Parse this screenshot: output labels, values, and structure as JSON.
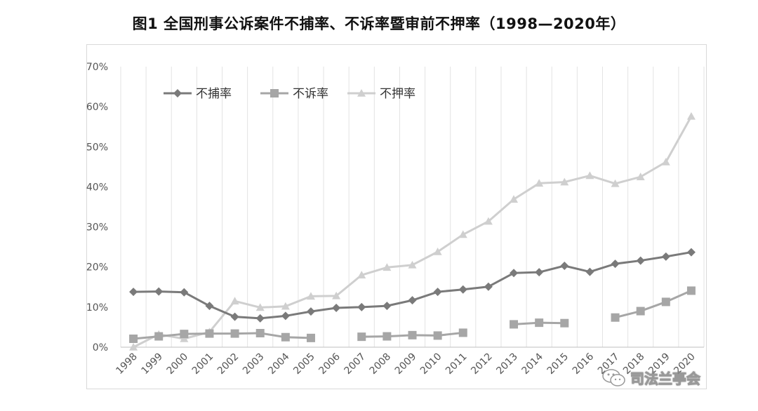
{
  "chart_data": {
    "type": "line",
    "title": "图1 全国刑事公诉案件不捕率、不诉率暨审前不押率（1998—2020年）",
    "x": [
      "1998",
      "1999",
      "2000",
      "2001",
      "2002",
      "2003",
      "2004",
      "2005",
      "2006",
      "2007",
      "2008",
      "2009",
      "2010",
      "2011",
      "2012",
      "2013",
      "2014",
      "2015",
      "2016",
      "2017",
      "2018",
      "2019",
      "2020"
    ],
    "ylim": [
      0,
      70
    ],
    "yticks": [
      "0%",
      "10%",
      "20%",
      "30%",
      "40%",
      "50%",
      "60%",
      "70%"
    ],
    "grid": "vertical",
    "legend_position": "top-left",
    "series": [
      {
        "name": "不捕率",
        "marker": "diamond",
        "color": "#7a7a7a",
        "values": [
          13.8,
          13.9,
          13.7,
          10.3,
          7.6,
          7.2,
          7.8,
          8.9,
          9.8,
          10.0,
          10.3,
          11.7,
          13.8,
          14.4,
          15.1,
          18.5,
          18.7,
          20.3,
          18.8,
          20.8,
          21.6,
          22.6,
          23.7
        ]
      },
      {
        "name": "不诉率",
        "marker": "square",
        "color": "#a6a6a6",
        "values": [
          2.1,
          2.7,
          3.3,
          3.4,
          3.4,
          3.5,
          2.5,
          2.3,
          null,
          2.6,
          2.7,
          3.0,
          2.9,
          3.6,
          null,
          5.7,
          6.1,
          6.0,
          null,
          7.4,
          9.0,
          11.3,
          14.1
        ]
      },
      {
        "name": "不押率",
        "marker": "triangle",
        "color": "#cfcfcf",
        "values": [
          0.0,
          3.2,
          2.1,
          3.8,
          11.5,
          9.9,
          10.2,
          12.7,
          12.8,
          18.0,
          19.9,
          20.5,
          23.8,
          28.1,
          31.4,
          36.9,
          40.9,
          41.2,
          42.8,
          40.8,
          42.5,
          46.2,
          57.6
        ]
      }
    ]
  },
  "watermark": {
    "text": "司法兰亭会",
    "icon": "wechat-icon"
  }
}
